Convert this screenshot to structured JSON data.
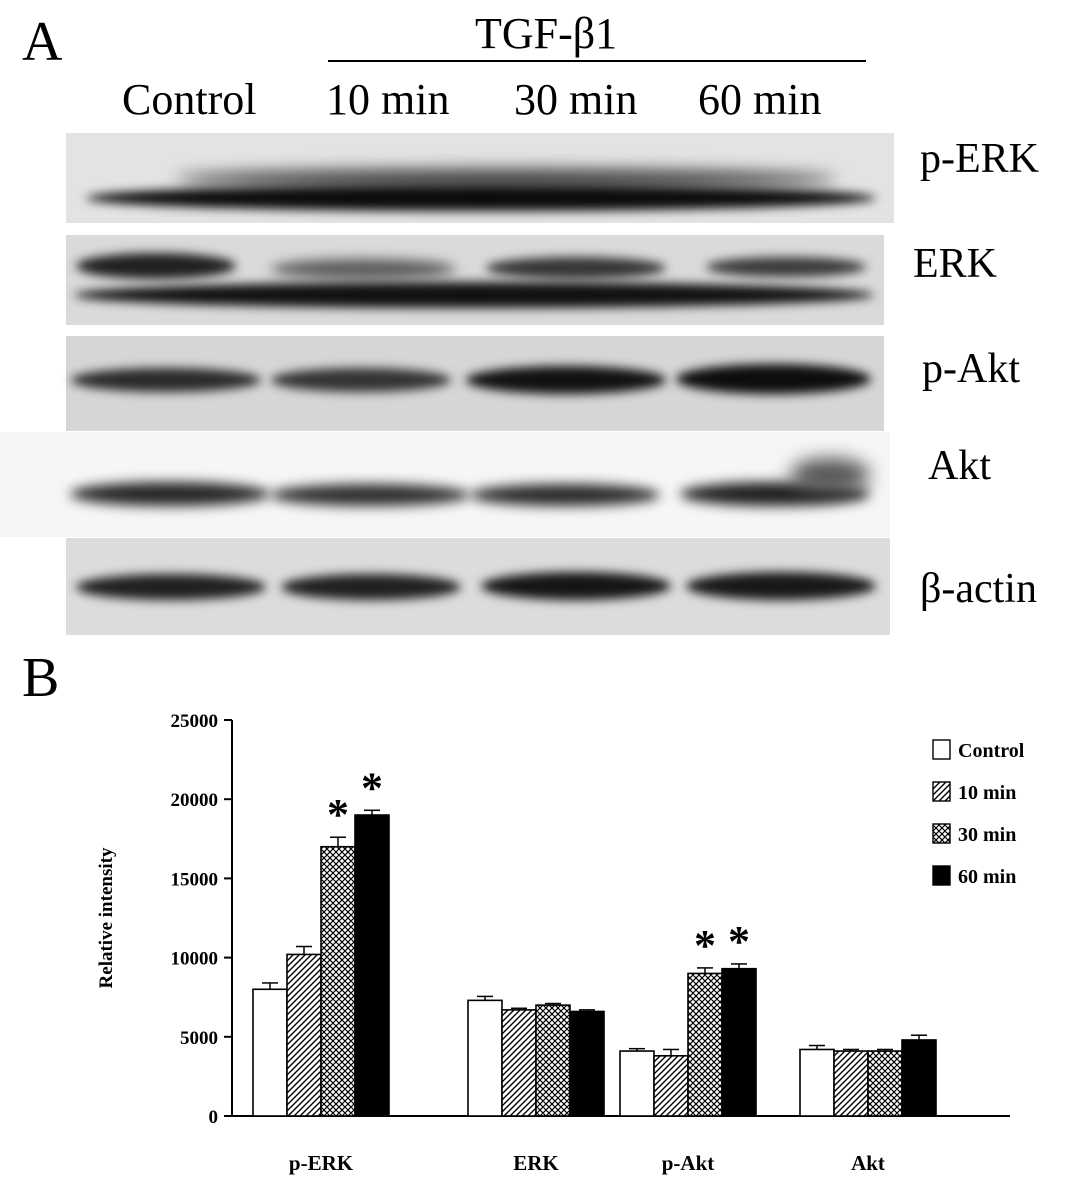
{
  "panel_a": {
    "letter": "A",
    "treatment_label": "TGF-β1",
    "lanes": [
      "Control",
      "10 min",
      "30 min",
      "60 min"
    ],
    "rows": [
      "p-ERK",
      "ERK",
      "p-Akt",
      "Akt",
      "β-actin"
    ]
  },
  "panel_b": {
    "letter": "B"
  },
  "chart_data": {
    "type": "bar",
    "ylabel": "Relative intensity",
    "xlabel": "",
    "ylim": [
      0,
      25000
    ],
    "yticks": [
      0,
      5000,
      10000,
      15000,
      20000,
      25000
    ],
    "categories": [
      "p-ERK",
      "ERK",
      "p-Akt",
      "Akt"
    ],
    "series": [
      {
        "name": "Control",
        "values": [
          8000,
          7300,
          4100,
          4200
        ],
        "errors": [
          400,
          250,
          150,
          250
        ],
        "pattern": "white"
      },
      {
        "name": "10 min",
        "values": [
          10200,
          6700,
          3800,
          4100
        ],
        "errors": [
          500,
          100,
          400,
          100
        ],
        "pattern": "diagonal"
      },
      {
        "name": "30 min",
        "values": [
          17000,
          7000,
          9000,
          4100
        ],
        "errors": [
          600,
          100,
          350,
          100
        ],
        "pattern": "crosshatch"
      },
      {
        "name": "60 min",
        "values": [
          19000,
          6600,
          9300,
          4800
        ],
        "errors": [
          300,
          100,
          300,
          300
        ],
        "pattern": "black"
      }
    ],
    "significance_marker": "*",
    "significant": [
      [
        false,
        false,
        true,
        true
      ],
      [
        false,
        false,
        false,
        false
      ],
      [
        false,
        false,
        true,
        true
      ],
      [
        false,
        false,
        false,
        false
      ]
    ],
    "legend_position": "top-right",
    "grid": false
  }
}
